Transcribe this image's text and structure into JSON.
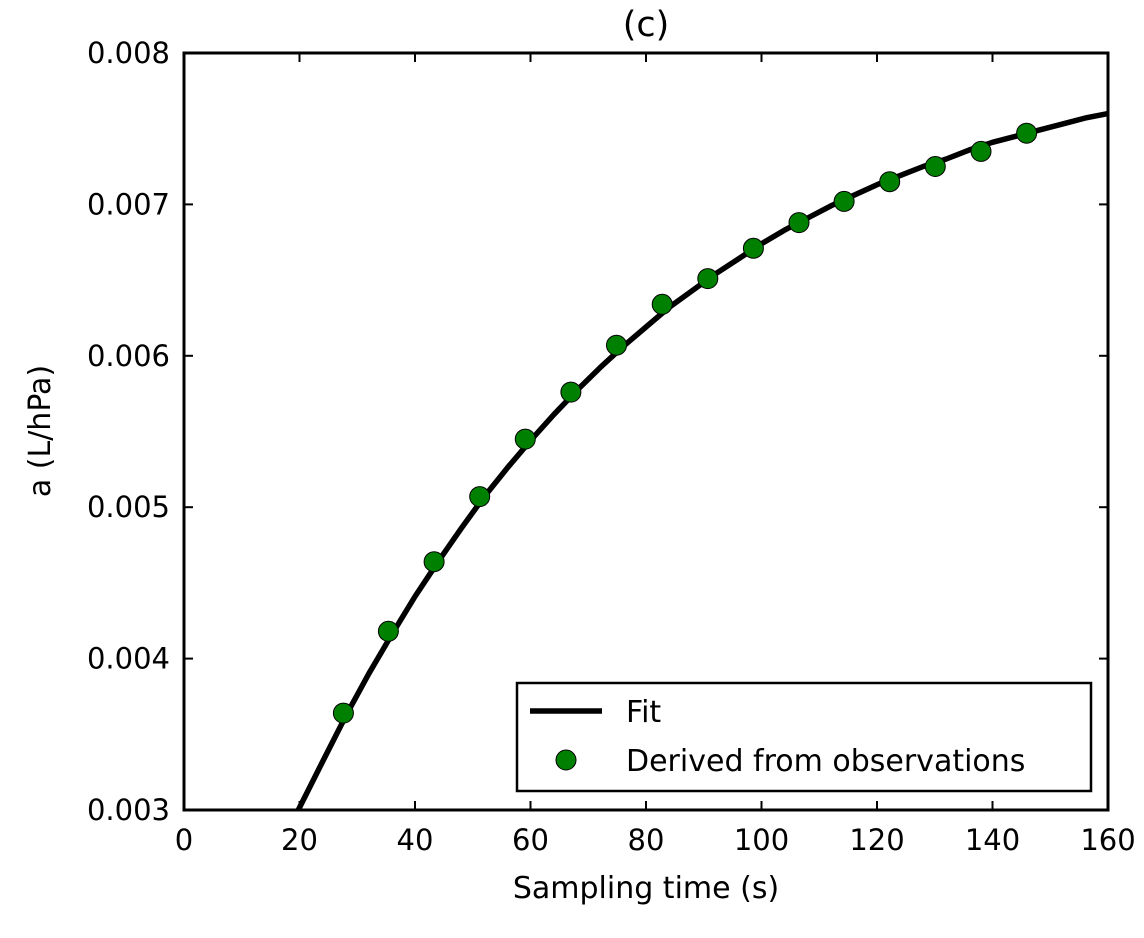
{
  "chart_data": {
    "type": "line",
    "title": "(c)",
    "xlabel": "Sampling time (s)",
    "ylabel": "a (L/hPa)",
    "xlim": [
      0,
      160
    ],
    "ylim": [
      0.003,
      0.008
    ],
    "x_ticks": [
      0,
      20,
      40,
      60,
      80,
      100,
      120,
      140,
      160
    ],
    "x_tick_labels": [
      "0",
      "20",
      "40",
      "60",
      "80",
      "100",
      "120",
      "140",
      "160"
    ],
    "y_ticks": [
      0.003,
      0.004,
      0.005,
      0.006,
      0.007,
      0.008
    ],
    "y_tick_labels": [
      "0.003",
      "0.004",
      "0.005",
      "0.006",
      "0.007",
      "0.008"
    ],
    "grid": false,
    "legend_position": "lower-right",
    "series": [
      {
        "name": "Fit",
        "kind": "line",
        "color": "#000000",
        "x": [
          19.8,
          24,
          28,
          32,
          36,
          40,
          44,
          48,
          52,
          56,
          60,
          64,
          68,
          72,
          76,
          80,
          84,
          88,
          92,
          96,
          100,
          104,
          108,
          112,
          116,
          120,
          124,
          128,
          132,
          136,
          140,
          144,
          148,
          152,
          156,
          160
        ],
        "y": [
          0.003,
          0.00332,
          0.00362,
          0.0039,
          0.00416,
          0.00441,
          0.00464,
          0.00486,
          0.00507,
          0.00526,
          0.00544,
          0.00561,
          0.00577,
          0.00592,
          0.00606,
          0.00619,
          0.00632,
          0.00643,
          0.00654,
          0.00664,
          0.00674,
          0.00683,
          0.00691,
          0.00699,
          0.00706,
          0.00713,
          0.00719,
          0.00725,
          0.0073,
          0.00736,
          0.00741,
          0.00745,
          0.00749,
          0.00753,
          0.00757,
          0.0076
        ]
      },
      {
        "name": "Derived from observations",
        "kind": "scatter",
        "color": "#008000",
        "edge_color": "#000000",
        "x": [
          27.6,
          35.4,
          43.3,
          51.2,
          59.1,
          67.0,
          74.9,
          82.8,
          90.7,
          98.6,
          106.5,
          114.3,
          122.2,
          130.1,
          138.0,
          145.9
        ],
        "y": [
          0.00364,
          0.00418,
          0.00464,
          0.00507,
          0.00545,
          0.00576,
          0.00607,
          0.00634,
          0.00651,
          0.00671,
          0.00688,
          0.00702,
          0.00715,
          0.00725,
          0.00735,
          0.00747
        ]
      }
    ],
    "legend": [
      {
        "label": "Fit",
        "marker": "line"
      },
      {
        "label": "Derived from observations",
        "marker": "circle"
      }
    ]
  }
}
